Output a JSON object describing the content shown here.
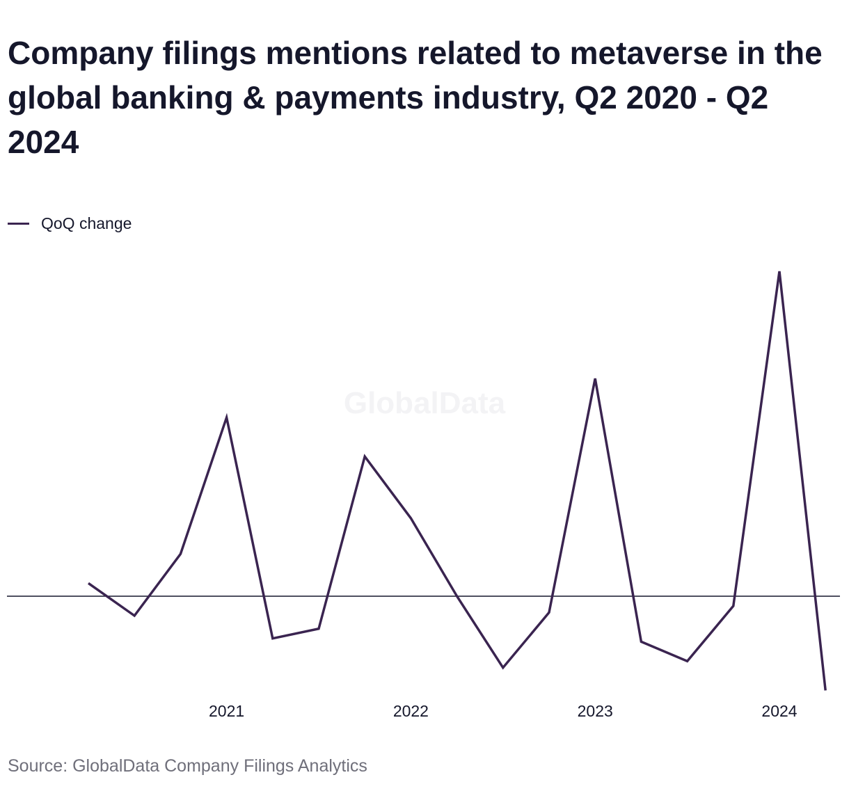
{
  "title": "Company filings mentions related to metaverse in the global banking & payments industry, Q2 2020 - Q2 2024",
  "source": "Source: GlobalData Company Filings Analytics",
  "watermark": "GlobalData",
  "colors": {
    "series": "#3a2450",
    "baseline": "#15172b",
    "text": "#15172b",
    "source": "#6f6f7a"
  },
  "chart_data": {
    "type": "line",
    "title": "Company filings mentions related to metaverse in the global banking & payments industry, Q2 2020 - Q2 2024",
    "xlabel": "",
    "ylabel": "",
    "x": [
      "Q2 2020",
      "Q3 2020",
      "Q4 2020",
      "Q1 2021",
      "Q2 2021",
      "Q3 2021",
      "Q4 2021",
      "Q1 2022",
      "Q2 2022",
      "Q3 2022",
      "Q4 2022",
      "Q1 2023",
      "Q2 2023",
      "Q3 2023",
      "Q4 2023",
      "Q1 2024",
      "Q2 2024"
    ],
    "x_tick_labels": [
      {
        "label": "2021",
        "at": "Q1 2021"
      },
      {
        "label": "2022",
        "at": "Q1 2022"
      },
      {
        "label": "2023",
        "at": "Q1 2023"
      },
      {
        "label": "2024",
        "at": "Q1 2024"
      }
    ],
    "series": [
      {
        "name": "QoQ change",
        "values": [
          0.04,
          -0.06,
          0.13,
          0.55,
          -0.13,
          -0.1,
          0.43,
          0.24,
          0,
          -0.22,
          -0.05,
          0.67,
          -0.14,
          -0.2,
          -0.03,
          1.0,
          -0.29
        ]
      }
    ],
    "ylim": [
      -0.29,
      1.0
    ],
    "baseline": 0,
    "grid": false,
    "legend": "top-left"
  }
}
